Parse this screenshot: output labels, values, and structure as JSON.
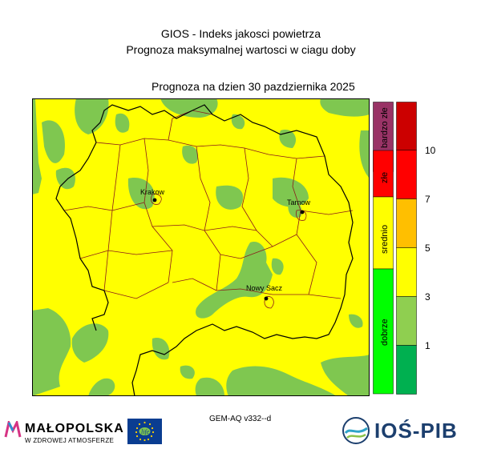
{
  "header": {
    "title_line1": "GIOS - Indeks jakosci powietrza",
    "title_line2": "Prognoza maksymalnej wartosci w ciagu doby",
    "date_text": "Prognoza na dzien  30 pazdziernika 2025"
  },
  "map": {
    "cities": [
      {
        "name": "Krakow"
      },
      {
        "name": "Tarnow"
      },
      {
        "name": "Nowy Sacz"
      }
    ],
    "colors": {
      "yellow": "#ffff00",
      "green": "#7fc750",
      "border": "#8b1a1a",
      "outline": "#000000"
    }
  },
  "legend_categories": [
    {
      "label": "bardzo złe",
      "color": "#993366"
    },
    {
      "label": "złe",
      "color": "#ff0000"
    },
    {
      "label": "srednio",
      "color": "#ffff00"
    },
    {
      "label": "dobrze",
      "color": "#00ff00"
    }
  ],
  "scale": {
    "colors": [
      "#cc0000",
      "#ff0000",
      "#ffbf00",
      "#ffff00",
      "#8fcf50",
      "#00b050"
    ],
    "tick_labels": [
      "10",
      "7",
      "5",
      "3",
      "1"
    ]
  },
  "footer": {
    "model_text": "GEM-AQ v332--d",
    "malopolska_name": "MAŁOPOLSKA",
    "malopolska_tagline": "W ZDROWEJ ATMOSFERZE",
    "eu_logo_text": "life",
    "iospib_name": "IOŚ-PIB"
  }
}
